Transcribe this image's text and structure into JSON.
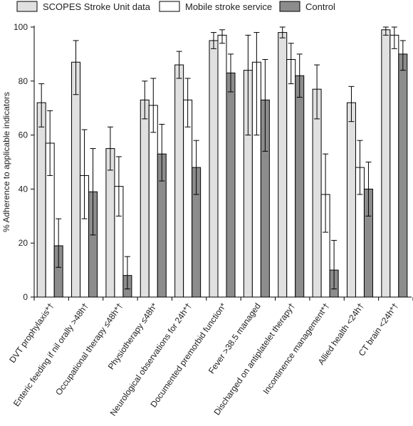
{
  "chart_data": {
    "type": "bar",
    "ylabel": "% Adherence to applicable indicators",
    "xlabel": "",
    "ylim": [
      0,
      100
    ],
    "yticks": [
      0,
      20,
      40,
      60,
      80,
      100
    ],
    "legend_position": "top",
    "categories": [
      "DVT prophylaxis*†",
      "Enteric feeding if nil orally >48h†",
      "Occupational therapy ≤48h*†",
      "Physiotherapy ≤48h*",
      "Neurological observations for 24h*†",
      "Documented premorbid function*",
      "Fever >38.5 managed",
      "Discharged on antiplatelet therapy†",
      "Incontinence management*†",
      "Allied health <24h†",
      "CT brain <24h*†"
    ],
    "series": [
      {
        "name": "SCOPES Stroke Unit data",
        "color": "#e0e0e0",
        "values": [
          72,
          87,
          55,
          73,
          86,
          95,
          84,
          98,
          77,
          72,
          99
        ],
        "err_low": [
          63,
          75,
          47,
          66,
          81,
          92,
          60,
          96,
          66,
          65,
          97
        ],
        "err_high": [
          79,
          95,
          63,
          80,
          91,
          98,
          97,
          100,
          86,
          78,
          100
        ]
      },
      {
        "name": "Mobile stroke service",
        "color": "#ffffff",
        "values": [
          57,
          45,
          41,
          71,
          73,
          97,
          87,
          88,
          38,
          48,
          97
        ],
        "err_low": [
          45,
          29,
          30,
          61,
          63,
          94,
          60,
          79,
          24,
          38,
          92
        ],
        "err_high": [
          69,
          62,
          52,
          81,
          81,
          99,
          98,
          94,
          53,
          58,
          100
        ]
      },
      {
        "name": "Control",
        "color": "#8c8c8c",
        "values": [
          19,
          39,
          8,
          53,
          48,
          83,
          73,
          82,
          10,
          40,
          90
        ],
        "err_low": [
          11,
          23,
          3,
          43,
          38,
          76,
          54,
          74,
          3,
          30,
          84
        ],
        "err_high": [
          29,
          55,
          15,
          64,
          58,
          90,
          88,
          90,
          21,
          50,
          95
        ]
      }
    ]
  }
}
